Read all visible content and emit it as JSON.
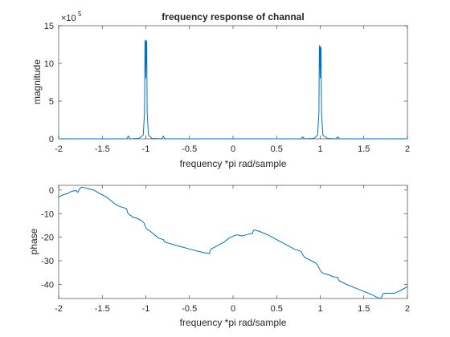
{
  "colors": {
    "background": "#ffffff",
    "axes": "#262626",
    "line": "#0072BD"
  },
  "chart_data": [
    {
      "type": "line",
      "title": "frequency response of channal",
      "xlabel": "frequency *pi rad/sample",
      "ylabel": "magnitude",
      "xlim": [
        -2,
        2
      ],
      "ylim": [
        0,
        15
      ],
      "xticks": [
        "-2",
        "-1.5",
        "-1",
        "-0.5",
        "0",
        "0.5",
        "1",
        "1.5",
        "2"
      ],
      "yticks": [
        "0",
        "5",
        "10",
        "15"
      ],
      "exponent_label": "×10",
      "exponent_power": "5",
      "grid": false,
      "series": [
        {
          "x": [
            -2,
            -1.3,
            -1.22,
            -1.2,
            -1.18,
            -1.08,
            -1.03,
            -1.015,
            -1.01,
            -1.005,
            -1.0,
            -0.995,
            -0.99,
            -0.985,
            -0.97,
            -0.93,
            -0.82,
            -0.8,
            -0.78,
            -0.5,
            0,
            0.5,
            0.78,
            0.8,
            0.82,
            0.93,
            0.97,
            0.985,
            0.99,
            0.995,
            1.0,
            1.005,
            1.01,
            1.015,
            1.03,
            1.08,
            1.18,
            1.2,
            1.22,
            1.3,
            2
          ],
          "y": [
            0,
            0,
            0,
            0.35,
            0,
            0.05,
            0.5,
            3.5,
            13,
            12.9,
            8.0,
            13.1,
            12.8,
            3.5,
            0.5,
            0.05,
            0,
            0.35,
            0,
            0,
            0,
            0,
            0,
            0.25,
            0,
            0.05,
            0.5,
            3.5,
            12.2,
            12.4,
            8.0,
            12.2,
            12.0,
            3.5,
            0.5,
            0.05,
            0,
            0.25,
            0,
            0,
            0
          ]
        }
      ]
    },
    {
      "type": "line",
      "title": "",
      "xlabel": "frequency *pi rad/sample",
      "ylabel": "phase",
      "xlim": [
        -2,
        2
      ],
      "ylim": [
        -46,
        2
      ],
      "xticks": [
        "-2",
        "-1.5",
        "-1",
        "-0.5",
        "0",
        "0.5",
        "1",
        "1.5",
        "2"
      ],
      "yticks": [
        "-40",
        "-30",
        "-20",
        "-10",
        "0"
      ],
      "grid": false,
      "series": [
        {
          "x": [
            -2,
            -1.95,
            -1.9,
            -1.85,
            -1.8,
            -1.78,
            -1.76,
            -1.74,
            -1.7,
            -1.65,
            -1.6,
            -1.55,
            -1.5,
            -1.45,
            -1.4,
            -1.35,
            -1.3,
            -1.25,
            -1.22,
            -1.21,
            -1.2,
            -1.15,
            -1.1,
            -1.05,
            -1.02,
            -1.01,
            -1.0,
            -0.99,
            -0.98,
            -0.95,
            -0.9,
            -0.85,
            -0.8,
            -0.79,
            -0.78,
            -0.7,
            -0.6,
            -0.5,
            -0.4,
            -0.3,
            -0.27,
            -0.26,
            -0.25,
            -0.2,
            -0.15,
            -0.1,
            -0.05,
            0,
            0.05,
            0.1,
            0.15,
            0.2,
            0.22,
            0.23,
            0.24,
            0.25,
            0.3,
            0.4,
            0.5,
            0.6,
            0.7,
            0.78,
            0.8,
            0.82,
            0.9,
            0.95,
            0.98,
            0.99,
            1.0,
            1.01,
            1.02,
            1.05,
            1.1,
            1.15,
            1.2,
            1.21,
            1.22,
            1.3,
            1.4,
            1.5,
            1.6,
            1.65,
            1.68,
            1.7,
            1.72,
            1.75,
            1.8,
            1.85,
            1.9,
            1.95,
            2
          ],
          "y": [
            -3.0,
            -2.0,
            -1.5,
            -0.5,
            -0.2,
            -1.0,
            0.5,
            1.2,
            1.0,
            0.5,
            0,
            -1.0,
            -2.0,
            -3.0,
            -4.5,
            -6.0,
            -7.0,
            -7.5,
            -8.0,
            -9.5,
            -10.0,
            -11.5,
            -12.0,
            -13.0,
            -14.0,
            -15.0,
            -16.0,
            -16.5,
            -16.8,
            -17.5,
            -19.0,
            -20.5,
            -21.0,
            -21.8,
            -22.0,
            -23.0,
            -24.0,
            -25.0,
            -26.0,
            -26.8,
            -27.0,
            -25.5,
            -25.0,
            -24.0,
            -23.0,
            -22.0,
            -20.5,
            -19.5,
            -19.0,
            -19.5,
            -19.0,
            -18.5,
            -18.5,
            -17.5,
            -17.0,
            -17.0,
            -17.5,
            -19.0,
            -21.0,
            -23.0,
            -25.0,
            -26.0,
            -27.5,
            -28.5,
            -30.0,
            -31.0,
            -32.5,
            -33.5,
            -34.0,
            -34.5,
            -35.0,
            -35.5,
            -36.0,
            -36.8,
            -37.0,
            -38.0,
            -38.5,
            -40.0,
            -41.5,
            -43.0,
            -44.5,
            -45.5,
            -46.0,
            -45.8,
            -44.0,
            -43.8,
            -43.8,
            -43.8,
            -43.0,
            -42.0,
            -41.0
          ]
        }
      ]
    }
  ]
}
